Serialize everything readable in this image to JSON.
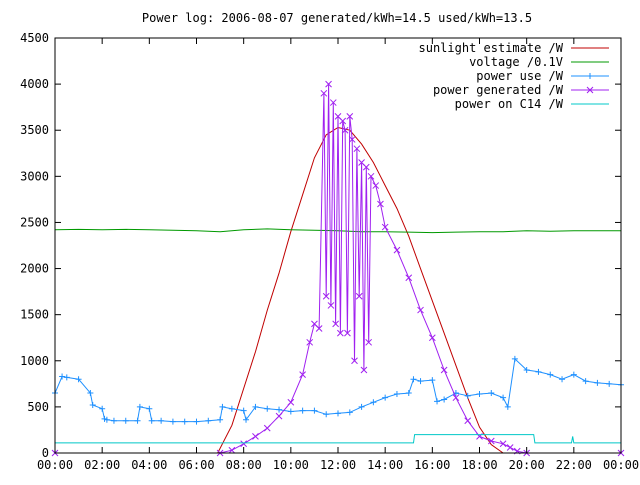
{
  "chart_data": {
    "type": "line",
    "title": "Power log: 2006-08-07 generated/kWh=14.5 used/kWh=13.5",
    "xlabel": "",
    "ylabel": "",
    "xlim": [
      0,
      24
    ],
    "ylim": [
      0,
      4500
    ],
    "x_ticks": [
      "00:00",
      "02:00",
      "04:00",
      "06:00",
      "08:00",
      "10:00",
      "12:00",
      "14:00",
      "16:00",
      "18:00",
      "20:00",
      "22:00",
      "00:00"
    ],
    "y_ticks": [
      "0",
      "500",
      "1000",
      "1500",
      "2000",
      "2500",
      "3000",
      "3500",
      "4000",
      "4500"
    ],
    "grid": false,
    "legend_position": "top-right",
    "series": [
      {
        "name": "sunlight estimate /W",
        "color": "#c00000",
        "marker": "none",
        "x": [
          0,
          6.9,
          7.5,
          8,
          8.5,
          9,
          9.5,
          10,
          10.5,
          11,
          11.5,
          12,
          12.5,
          13,
          13.5,
          14,
          14.5,
          15,
          15.5,
          16,
          16.5,
          17,
          17.5,
          18,
          18.5,
          19,
          24
        ],
        "values": [
          0,
          0,
          300,
          700,
          1100,
          1550,
          1950,
          2400,
          2800,
          3200,
          3450,
          3530,
          3500,
          3350,
          3150,
          2900,
          2650,
          2350,
          2000,
          1650,
          1300,
          950,
          600,
          280,
          90,
          0,
          0
        ]
      },
      {
        "name": "voltage /0.1V",
        "color": "#009900",
        "marker": "none",
        "x": [
          0,
          1,
          2,
          3,
          4,
          5,
          6,
          7,
          8,
          9,
          10,
          11,
          12,
          13,
          14,
          15,
          16,
          17,
          18,
          19,
          20,
          21,
          22,
          23,
          24
        ],
        "values": [
          2420,
          2425,
          2420,
          2425,
          2420,
          2415,
          2410,
          2400,
          2420,
          2430,
          2420,
          2415,
          2410,
          2400,
          2400,
          2395,
          2390,
          2395,
          2400,
          2400,
          2410,
          2405,
          2410,
          2410,
          2410
        ]
      },
      {
        "name": "power use /W",
        "color": "#1e90ff",
        "marker": "plus",
        "x": [
          0,
          0.3,
          0.5,
          1,
          1.5,
          1.6,
          2,
          2.1,
          2.2,
          2.5,
          3,
          3.5,
          3.6,
          4,
          4.1,
          4.5,
          5,
          5.5,
          6,
          6.5,
          7,
          7.1,
          7.5,
          8,
          8.1,
          8.5,
          9,
          9.5,
          10,
          10.5,
          11,
          11.5,
          12,
          12.5,
          13,
          13.5,
          14,
          14.5,
          15,
          15.2,
          15.5,
          16,
          16.2,
          16.5,
          17,
          17.5,
          18,
          18.5,
          19,
          19.2,
          19.5,
          20,
          20.5,
          21,
          21.5,
          22,
          22.5,
          23,
          23.5,
          24
        ],
        "values": [
          650,
          830,
          820,
          800,
          650,
          520,
          480,
          370,
          360,
          350,
          350,
          350,
          500,
          480,
          350,
          350,
          340,
          340,
          340,
          350,
          360,
          500,
          480,
          460,
          360,
          500,
          480,
          470,
          450,
          460,
          460,
          420,
          430,
          440,
          500,
          550,
          600,
          640,
          650,
          800,
          780,
          790,
          560,
          580,
          650,
          620,
          640,
          650,
          600,
          500,
          1020,
          900,
          880,
          850,
          800,
          850,
          780,
          760,
          750,
          740
        ]
      },
      {
        "name": "power generated /W",
        "color": "#a020f0",
        "marker": "cross",
        "x": [
          0,
          7.0,
          7.5,
          8,
          8.5,
          9,
          9.5,
          10,
          10.5,
          10.8,
          11,
          11.2,
          11.4,
          11.5,
          11.6,
          11.7,
          11.8,
          11.9,
          12.0,
          12.1,
          12.2,
          12.3,
          12.4,
          12.5,
          12.6,
          12.7,
          12.8,
          12.9,
          13.0,
          13.1,
          13.2,
          13.3,
          13.4,
          13.6,
          13.8,
          14,
          14.5,
          15,
          15.5,
          16,
          16.5,
          17,
          17.5,
          18,
          18.5,
          19,
          19.3,
          19.6,
          20,
          24
        ],
        "values": [
          0,
          0,
          30,
          100,
          180,
          270,
          400,
          550,
          850,
          1200,
          1400,
          1350,
          3900,
          1700,
          4000,
          1600,
          3800,
          1400,
          3650,
          1300,
          3600,
          3500,
          1300,
          3650,
          3400,
          1000,
          3300,
          1700,
          3150,
          900,
          3100,
          1200,
          3000,
          2900,
          2700,
          2450,
          2200,
          1900,
          1550,
          1250,
          900,
          600,
          350,
          180,
          130,
          100,
          60,
          20,
          0,
          0
        ]
      },
      {
        "name": "power on C14 /W",
        "color": "#00c8c8",
        "marker": "none",
        "x": [
          0,
          1,
          15.2,
          15.25,
          16,
          17,
          18,
          19,
          20,
          20.3,
          20.35,
          21.9,
          21.95,
          22.0,
          22.05,
          24
        ],
        "values": [
          110,
          110,
          110,
          200,
          200,
          200,
          200,
          200,
          200,
          200,
          110,
          110,
          180,
          110,
          110,
          110
        ]
      }
    ]
  }
}
